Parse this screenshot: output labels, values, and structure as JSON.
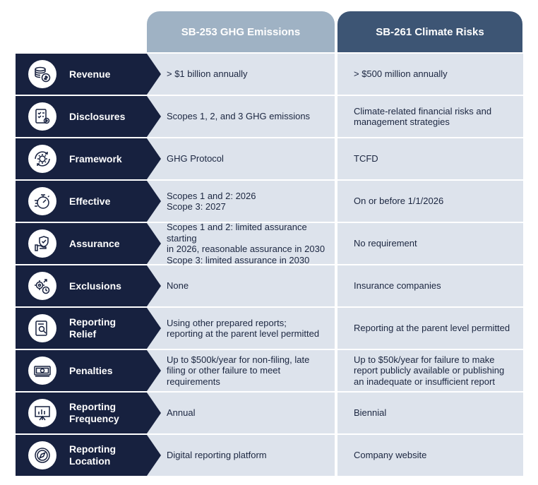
{
  "headers": {
    "col1": "SB-253 GHG Emissions",
    "col2": "SB-261 Climate Risks"
  },
  "rows": [
    {
      "label": "Revenue",
      "icon": "coins-icon",
      "col1": "> $1 billion annually",
      "col2": "> $500 million annually"
    },
    {
      "label": "Disclosures",
      "icon": "checklist-gear-icon",
      "col1": "Scopes 1, 2, and 3 GHG emissions",
      "col2": "Climate-related financial risks and\nmanagement strategies"
    },
    {
      "label": "Framework",
      "icon": "gear-cycle-icon",
      "col1": "GHG Protocol",
      "col2": "TCFD"
    },
    {
      "label": "Effective",
      "icon": "stopwatch-icon",
      "col1": "Scopes 1 and 2: 2026\nScope 3: 2027",
      "col2": "On or before 1/1/2026"
    },
    {
      "label": "Assurance",
      "icon": "shield-hand-icon",
      "col1": "Scopes 1 and 2: limited assurance starting\nin 2026, reasonable assurance in 2030\nScope 3: limited assurance in 2030",
      "col2": "No requirement"
    },
    {
      "label": "Exclusions",
      "icon": "gears-clock-icon",
      "col1": "None",
      "col2": "Insurance companies"
    },
    {
      "label": "Reporting\nRelief",
      "icon": "report-magnifier-icon",
      "col1": "Using other prepared reports;\nreporting at the parent level permitted",
      "col2": "Reporting at the parent level permitted"
    },
    {
      "label": "Penalties",
      "icon": "money-bill-icon",
      "col1": "Up to $500k/year for non-filing, late\nfiling or other failure to meet\nrequirements",
      "col2": "Up to $50k/year for failure to make\nreport publicly available or publishing\nan inadequate or insufficient report"
    },
    {
      "label": "Reporting\nFrequency",
      "icon": "presentation-chart-icon",
      "col1": "Annual",
      "col2": "Biennial"
    },
    {
      "label": "Reporting\nLocation",
      "icon": "compass-icon",
      "col1": "Digital reporting platform",
      "col2": "Company website"
    }
  ]
}
